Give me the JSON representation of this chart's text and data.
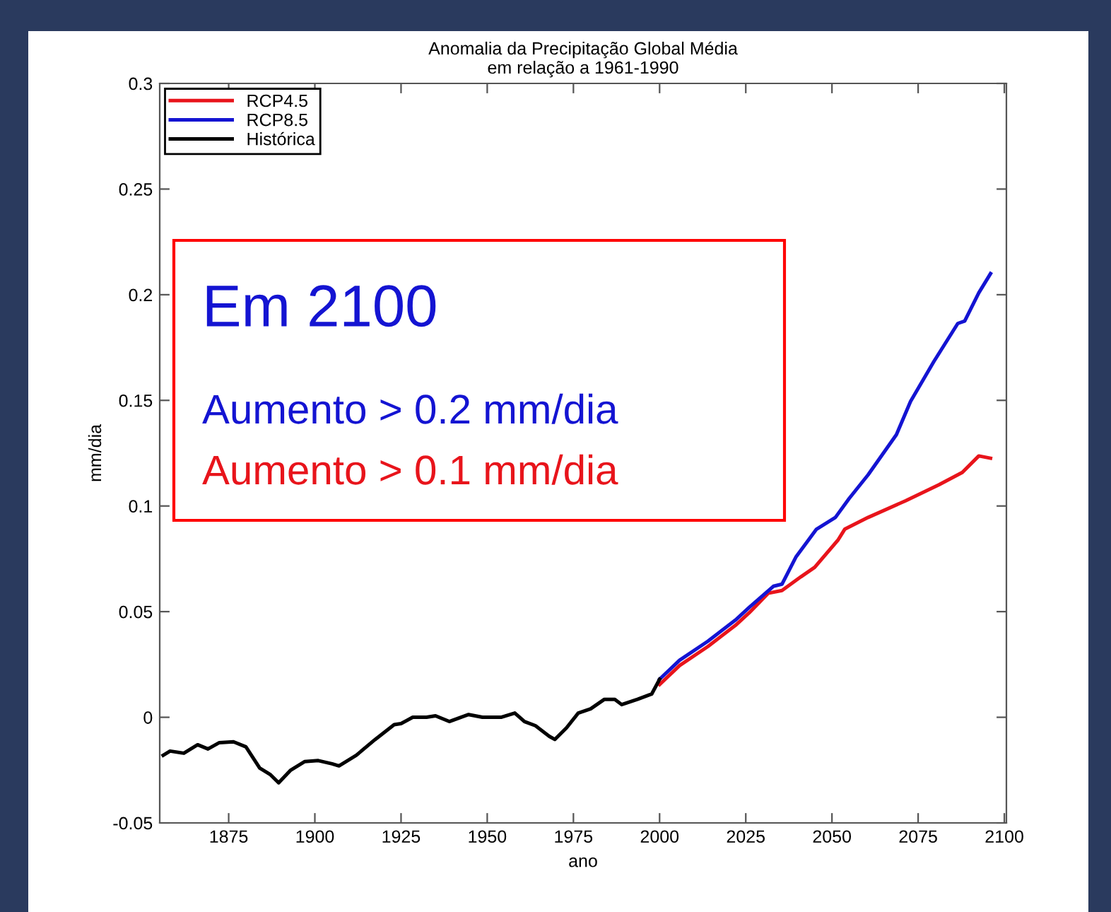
{
  "chart_data": {
    "type": "line",
    "title": "Anomalia da Precipitação Global Média\nem relação a 1961-1990",
    "xlabel": "ano",
    "ylabel": "mm/dia",
    "xlim": [
      1855,
      2100.6
    ],
    "xticks": [
      1875,
      1900,
      1925,
      1950,
      1975,
      2000,
      2025,
      2050,
      2075,
      2100
    ],
    "ylim": [
      -0.05,
      0.3
    ],
    "yticks": [
      -0.05,
      0,
      0.05,
      0.1,
      0.15,
      0.2,
      0.25,
      0.3
    ],
    "legend": "top left",
    "grid": false,
    "line_style": "solid",
    "marker": "none",
    "annotations": [
      "Em 2100",
      "Aumento > 0.2 mm/dia",
      "Aumento > 0.1 mm/dia"
    ],
    "series": [
      {
        "name": "RCP4.5",
        "color": "#e8141b",
        "x": [
          2000,
          2005.8,
          2014,
          2022,
          2026,
          2031.5,
          2035.5,
          2041,
          2045,
          2051.8,
          2053.7,
          2060.5,
          2071.4,
          2081,
          2087.8,
          2092.6,
          2096
        ],
        "values": [
          0.0155,
          0.0245,
          0.0335,
          0.0435,
          0.0495,
          0.0587,
          0.06,
          0.0665,
          0.071,
          0.084,
          0.089,
          0.0946,
          0.1025,
          0.11,
          0.1159,
          0.1237,
          0.1226
        ]
      },
      {
        "name": "RCP8.5",
        "color": "#1414d2",
        "x": [
          2000,
          2005.8,
          2014,
          2022,
          2026,
          2033,
          2035.5,
          2039.6,
          2045.5,
          2051,
          2055,
          2060.5,
          2068.7,
          2072.8,
          2079.6,
          2086.5,
          2088.5,
          2092.6,
          2096
        ],
        "values": [
          0.018,
          0.027,
          0.036,
          0.046,
          0.052,
          0.062,
          0.063,
          0.076,
          0.089,
          0.0946,
          0.1036,
          0.1148,
          0.1338,
          0.1495,
          0.1685,
          0.1864,
          0.1875,
          0.2009,
          0.21
        ]
      },
      {
        "name": "Histórica",
        "color": "#000000",
        "x": [
          1856,
          1858,
          1862,
          1866,
          1869,
          1872.3,
          1876.4,
          1880,
          1884,
          1887,
          1889.5,
          1893,
          1897,
          1901,
          1905,
          1907,
          1912,
          1917.5,
          1923,
          1925,
          1928.4,
          1932.4,
          1935,
          1939,
          1944.6,
          1948.6,
          1954,
          1958,
          1960.8,
          1964,
          1968,
          1969.6,
          1973,
          1976.4,
          1980,
          1984,
          1987,
          1989,
          1993.6,
          1997.7,
          2000
        ],
        "values": [
          -0.018,
          -0.016,
          -0.017,
          -0.013,
          -0.015,
          -0.012,
          -0.0116,
          -0.014,
          -0.024,
          -0.027,
          -0.031,
          -0.025,
          -0.021,
          -0.0205,
          -0.022,
          -0.023,
          -0.018,
          -0.0105,
          -0.0035,
          -0.003,
          0,
          0,
          0.0007,
          -0.002,
          0.0013,
          0,
          0,
          0.002,
          -0.002,
          -0.004,
          -0.009,
          -0.0105,
          -0.005,
          0.002,
          0.004,
          0.0085,
          0.0085,
          0.006,
          0.0085,
          0.011,
          0.018
        ]
      }
    ]
  }
}
